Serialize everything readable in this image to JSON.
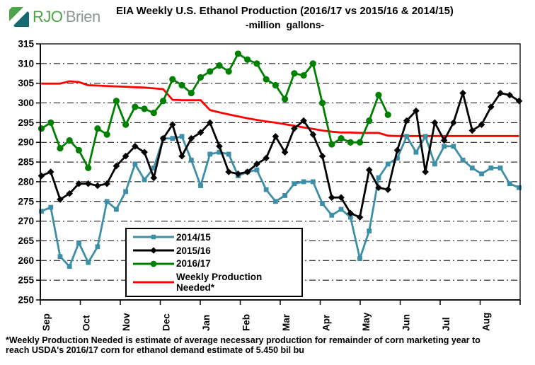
{
  "logo": {
    "text_primary": "RJO",
    "text_secondary": "’Brien",
    "icon": "rjo-brien-square-logo",
    "colors": {
      "green": "#4BA447",
      "teal": "#156A70",
      "gray": "#8E9894"
    }
  },
  "title": "EIA Weekly U.S. Ethanol Production (2016/17 vs 2015/16 & 2014/15)",
  "subtitle": "-million gallons-",
  "footnote": {
    "line1": "*Weekly Production Needed is estimate of average necessary production for remainder of corn marketing year to",
    "line2": "reach USDA's 2016/17 corn for ethanol demand estimate of 5.450 bil bu"
  },
  "chart_data": {
    "type": "line",
    "title": "EIA Weekly U.S. Ethanol Production (2016/17 vs 2015/16 & 2014/15)",
    "subtitle": "-million gallons-",
    "x_unit": "weekly observations, Sep through Aug (corn marketing year)",
    "months": [
      "Sep",
      "Oct",
      "Nov",
      "Dec",
      "Jan",
      "Feb",
      "Mar",
      "Apr",
      "May",
      "Jun",
      "Jul",
      "Aug"
    ],
    "ylim": [
      250,
      315
    ],
    "ytick_step": 5,
    "yticks": [
      250,
      255,
      260,
      265,
      270,
      275,
      280,
      285,
      290,
      295,
      300,
      305,
      310,
      315
    ],
    "grid": "horizontal dash-dot",
    "legend_position": "inside lower-left",
    "series": [
      {
        "name": "2014/15",
        "color": "#3D8EA7",
        "marker": "square",
        "values": [
          272.5,
          273.5,
          261,
          258.5,
          264.5,
          259.5,
          263.5,
          275,
          273,
          277.5,
          284.5,
          280.5,
          283.5,
          291,
          291,
          291.5,
          285.5,
          279,
          287,
          287.5,
          287,
          281.5,
          282.5,
          283,
          278,
          275,
          276.5,
          279.5,
          280,
          280,
          274.5,
          271.5,
          273,
          271,
          260.5,
          267.5,
          281,
          284.5,
          286,
          291.5,
          287.5,
          291.5,
          284.5,
          289,
          289,
          285.5,
          283.5,
          282,
          283.5,
          283.5,
          279.5,
          278.5
        ]
      },
      {
        "name": "2015/16",
        "color": "#000000",
        "marker": "diamond",
        "values": [
          281.5,
          282.5,
          275.5,
          277,
          279.5,
          279.5,
          279,
          279.5,
          284,
          286.5,
          289,
          287.5,
          281,
          291,
          294.5,
          286.5,
          291,
          292.5,
          295,
          289,
          282.5,
          282,
          282.5,
          284.5,
          286,
          291.5,
          287.5,
          293.5,
          295.5,
          292,
          286.5,
          276,
          276,
          272,
          271,
          283,
          278.5,
          278,
          288,
          295.5,
          298,
          282.5,
          295,
          290.5,
          295,
          302.5,
          293,
          294.5,
          299,
          302.5,
          302,
          300.5
        ]
      },
      {
        "name": "2016/17",
        "color": "#008000",
        "marker": "circle",
        "values": [
          293.5,
          295,
          288.5,
          290.5,
          288,
          283.5,
          293.5,
          292,
          300.5,
          294.5,
          299,
          298.5,
          297.5,
          300.5,
          306,
          304.5,
          302.5,
          306.5,
          308,
          309.5,
          308,
          312.5,
          311,
          310,
          306,
          304.5,
          301,
          307.5,
          307,
          310,
          300,
          289.5,
          291,
          290,
          290,
          295.5,
          302,
          297
        ]
      },
      {
        "name": "Weekly Production Needed*",
        "color": "#FF0000",
        "marker": "none",
        "values": [
          304.9,
          304.9,
          304.9,
          305.5,
          305.3,
          304.5,
          304.4,
          304.3,
          304.2,
          304.1,
          304.0,
          303.9,
          303.7,
          303.5,
          300.8,
          300.7,
          300.7,
          300.7,
          298.2,
          297.6,
          297.1,
          296.6,
          296.1,
          295.7,
          295.3,
          295.0,
          294.6,
          294.2,
          293.8,
          293.4,
          293.0,
          292.7,
          292.5,
          292.5,
          292.4,
          292.4,
          292.4,
          291.7,
          291.6,
          291.6,
          291.6,
          291.6,
          291.6,
          291.6,
          291.6,
          291.6,
          291.6,
          291.6,
          291.6,
          291.6,
          291.6,
          291.6
        ]
      }
    ]
  }
}
